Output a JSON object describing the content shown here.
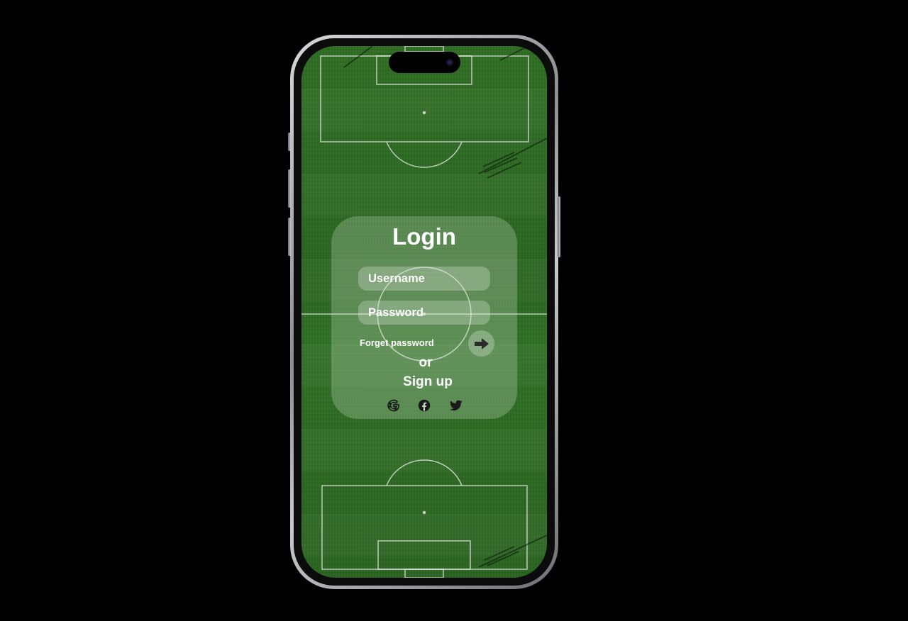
{
  "login": {
    "title": "Login",
    "username_placeholder": "Username",
    "password_placeholder": "Password",
    "forget_password": "Forget password",
    "or_text": "or",
    "signup": "Sign up"
  },
  "social": {
    "icons": [
      "google-icon",
      "facebook-icon",
      "twitter-icon"
    ]
  },
  "colors": {
    "background": "#000000",
    "pitch_green": "#2d6b22",
    "card_overlay": "#d2e1cd",
    "text": "#ffffff"
  }
}
